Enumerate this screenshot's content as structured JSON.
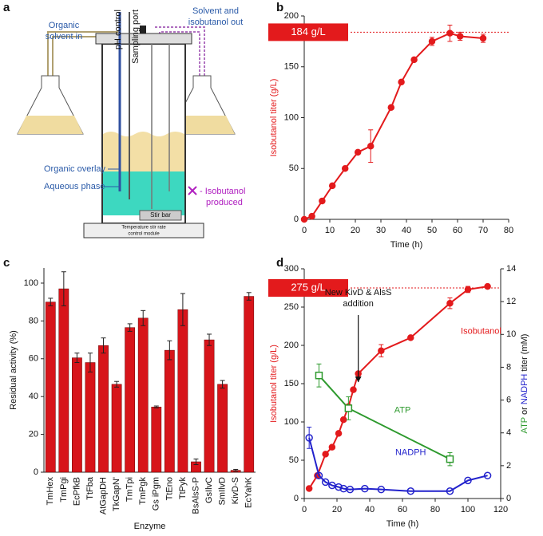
{
  "diagram": {
    "panel": "a",
    "organic_solvent_in": [
      "Organic",
      "solvent in"
    ],
    "ph_control": "pH control",
    "sampling_port": "Sampling port",
    "solvent_out": [
      "Solvent and",
      "isobutanol out"
    ],
    "organic_overlay": "Organic overlay",
    "aqueous_phase": "Aqueous phase",
    "isobutanol_produced": [
      "- Isobutanol",
      "produced"
    ],
    "stir_bar": "Stir bar",
    "control_module": [
      "Temperature stir rate",
      "control module"
    ]
  },
  "chart_data": [
    {
      "panel": "b",
      "type": "line",
      "color": "#e31a1c",
      "x": [
        0,
        3,
        7,
        11,
        16,
        21,
        26,
        34,
        38,
        43,
        50,
        57,
        61,
        70
      ],
      "values": [
        0,
        3,
        18,
        33,
        50,
        66,
        72,
        110,
        135,
        157,
        175,
        183,
        180,
        178
      ],
      "errors": [
        null,
        null,
        null,
        null,
        null,
        null,
        16,
        null,
        null,
        null,
        4,
        8,
        4,
        4
      ],
      "xlim": [
        0,
        80
      ],
      "xticks": [
        0,
        10,
        20,
        30,
        40,
        50,
        60,
        70,
        80
      ],
      "ylim": [
        0,
        200
      ],
      "yticks": [
        0,
        50,
        100,
        150,
        200
      ],
      "xlabel": "Time (h)",
      "ylabel": "Isobutanol titer (g/L)",
      "annotation": {
        "value": 184,
        "label": "184 g/L"
      }
    },
    {
      "panel": "c",
      "type": "bar",
      "color": "#d7141a",
      "categories": [
        "TmHex",
        "TmPgi",
        "EcPfkB",
        "TtFba",
        "AtGapDH",
        "TkGapN'",
        "TmTpi",
        "TmPgk",
        "Gs iPgm",
        "TtEno",
        "TtPyk",
        "BsAlsS-P",
        "GsIlvC",
        "SmIlvD",
        "KivD-S",
        "EcYahK"
      ],
      "values": [
        90,
        97,
        60.5,
        58,
        67,
        46.5,
        76.5,
        81.5,
        34.5,
        64.5,
        86,
        5.5,
        70,
        46.5,
        1,
        93
      ],
      "errors": [
        2,
        9,
        2.5,
        5,
        4,
        1.5,
        2,
        4,
        0.5,
        5,
        8.5,
        1.5,
        3,
        2,
        0.5,
        2
      ],
      "ylim": [
        0,
        108
      ],
      "yticks": [
        0,
        20,
        40,
        60,
        80,
        100
      ],
      "xlabel": "Enzyme",
      "ylabel": "Residual activity (%)"
    },
    {
      "panel": "d",
      "type": "line",
      "series": [
        {
          "name": "Isobutanol",
          "color": "#e31a1c",
          "marker": "circle",
          "x": [
            3,
            8,
            13,
            17,
            21,
            24,
            27,
            30,
            33,
            47,
            65,
            89,
            100,
            112
          ],
          "values": [
            13,
            30,
            58,
            67,
            85,
            103,
            120,
            142,
            163,
            193,
            210,
            255,
            273,
            277
          ],
          "errors": [
            null,
            null,
            null,
            null,
            null,
            null,
            null,
            null,
            null,
            8,
            null,
            7,
            4,
            null
          ]
        },
        {
          "name": "ATP",
          "color": "#2e9a2e",
          "marker": "square",
          "axis": "y2",
          "x": [
            9,
            27,
            89
          ],
          "values": [
            7.5,
            5.5,
            2.4
          ],
          "errors": [
            0.7,
            0.7,
            0.4
          ]
        },
        {
          "name": "NADPH",
          "color": "#2222cc",
          "marker": "open-circle",
          "axis": "y2",
          "x": [
            3,
            9,
            13,
            17,
            21,
            24,
            28,
            37,
            47,
            65,
            89,
            100,
            112
          ],
          "values": [
            3.7,
            1.4,
            1.0,
            0.8,
            0.7,
            0.6,
            0.55,
            0.6,
            0.55,
            0.45,
            0.45,
            1.1,
            1.4
          ],
          "errors": [
            0.65,
            null,
            null,
            null,
            null,
            null,
            null,
            null,
            null,
            null,
            null,
            null,
            null
          ]
        }
      ],
      "xlim": [
        0,
        120
      ],
      "xticks": [
        0,
        20,
        40,
        60,
        80,
        100,
        120
      ],
      "ylim": [
        0,
        300
      ],
      "yticks": [
        0,
        50,
        100,
        150,
        200,
        250,
        300
      ],
      "y2lim": [
        0,
        14
      ],
      "y2ticks": [
        0,
        2,
        4,
        6,
        8,
        10,
        12,
        14
      ],
      "xlabel": "Time (h)",
      "ylabel": "Isobutanol titer (g/L)",
      "y2label": [
        "ATP",
        " or ",
        "NADPH",
        " titer (mM)"
      ],
      "annotation": {
        "value": 275,
        "label": "275 g/L"
      },
      "note": {
        "x": 33,
        "text": [
          "New KivD & AlsS",
          "addition"
        ]
      }
    }
  ]
}
